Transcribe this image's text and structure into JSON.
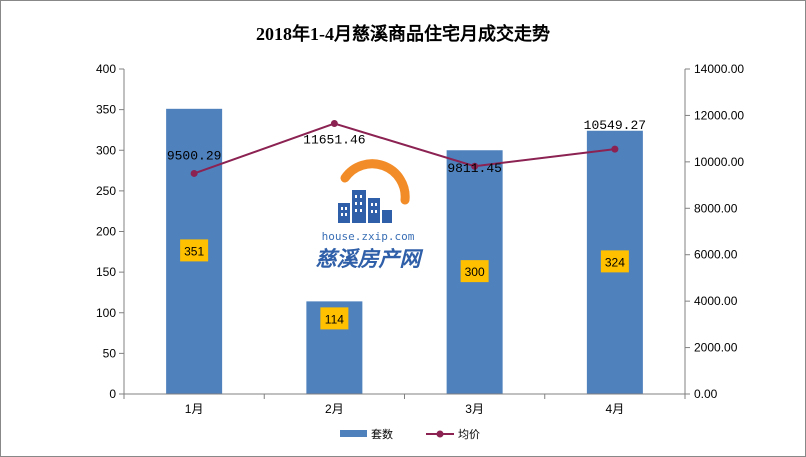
{
  "chart_data": {
    "type": "bar",
    "title": "2018年1-4月慈溪商品住宅月成交走势",
    "categories": [
      "1月",
      "2月",
      "3月",
      "4月"
    ],
    "series": [
      {
        "name": "套数",
        "type": "bar",
        "axis": "left",
        "values": [
          351,
          114,
          300,
          324
        ],
        "labels": [
          "351",
          "114",
          "300",
          "324"
        ],
        "color": "#4F81BD",
        "label_bg": "#FFC000"
      },
      {
        "name": "均价",
        "type": "line",
        "axis": "right",
        "values": [
          9500.29,
          11651.46,
          9811.45,
          10549.27
        ],
        "labels": [
          "9500.29",
          "11651.46",
          "9811.45",
          "10549.27"
        ],
        "color": "#8B2252"
      }
    ],
    "left_axis": {
      "min": 0,
      "max": 400,
      "step": 50,
      "ticks": [
        "0",
        "50",
        "100",
        "150",
        "200",
        "250",
        "300",
        "350",
        "400"
      ]
    },
    "right_axis": {
      "min": 0,
      "max": 14000,
      "step": 2000,
      "ticks": [
        "0.00",
        "2000.00",
        "4000.00",
        "6000.00",
        "8000.00",
        "10000.00",
        "12000.00",
        "14000.00"
      ]
    },
    "grid": false,
    "legend": "bottom-center"
  },
  "watermark": {
    "url": "house.zxip.com",
    "name": "慈溪房产网"
  },
  "colors": {
    "border": "#888888",
    "axis": "#808080",
    "watermark_orange": "#F28C28",
    "watermark_blue": "#2F5FA8"
  }
}
